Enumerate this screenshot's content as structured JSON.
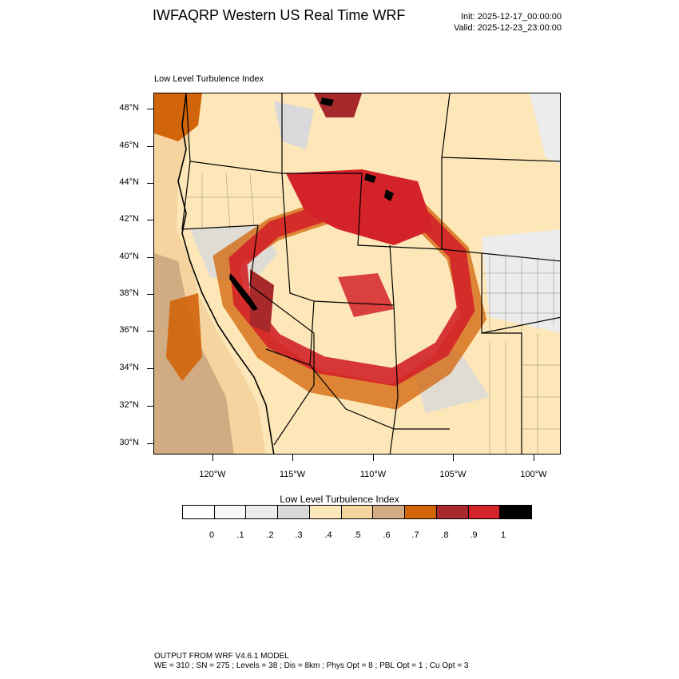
{
  "header": {
    "title": "IWFAQRP Western US Real Time WRF",
    "init": "Init: 2025-12-17_00:00:00",
    "valid": "Valid: 2025-12-23_23:00:00"
  },
  "map": {
    "subtitle": "Low Level Turbulence Index",
    "lat_labels": [
      "48°N",
      "46°N",
      "44°N",
      "42°N",
      "40°N",
      "38°N",
      "36°N",
      "34°N",
      "32°N",
      "30°N"
    ],
    "lon_labels": [
      "120°W",
      "115°W",
      "110°W",
      "105°W",
      "100°W"
    ],
    "field": "Low Level Turbulence Index",
    "projection": "lambert-conformal",
    "extent_deg": {
      "lon": [
        -123.5,
        -98.3
      ],
      "lat": [
        29.5,
        48.7
      ]
    }
  },
  "legend": {
    "title": "Low Level Turbulence Index",
    "labels": [
      "0",
      ".1",
      ".2",
      ".3",
      ".4",
      ".5",
      ".6",
      ".7",
      ".8",
      ".9",
      "1"
    ],
    "colors": [
      "#ffffff",
      "#f7f7f7",
      "#ececec",
      "#d9d9d9",
      "#fde7b8",
      "#f5d4a0",
      "#d1ab82",
      "#d2640a",
      "#a8292b",
      "#d32228",
      "#000000"
    ]
  },
  "footer": {
    "line1": "OUTPUT FROM WRF V4.6.1 MODEL",
    "line2": "WE = 310 ; SN = 275 ; Levels = 38 ; Dis = 8km ; Phys Opt = 8 ; PBL Opt = 1 ; Cu Opt = 3"
  }
}
